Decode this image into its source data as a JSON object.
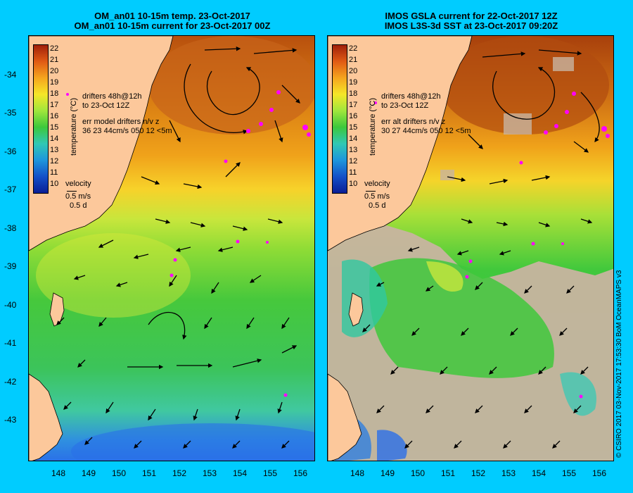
{
  "left_panel": {
    "title_line1": "OM_an01 10-15m temp. 23-Oct-2017",
    "title_line2": "OM_an01 10-15m current for 23-Oct-2017 00Z",
    "drifters_line1": "drifters 48h@12h",
    "drifters_line2": "to 23-Oct 12Z",
    "err_line1": "err model drifters n/v z",
    "err_line2": "36 23 44cm/s 050 12 <5m",
    "velocity_label": "velocity",
    "velocity_scale": "0.5 m/s",
    "velocity_time": "0.5 d"
  },
  "right_panel": {
    "title_line1": "IMOS GSLA current for 22-Oct-2017 12Z",
    "title_line2": "IMOS L3S-3d SST at 23-Oct-2017 09:20Z",
    "drifters_line1": "drifters 48h@12h",
    "drifters_line2": "to 23-Oct 12Z",
    "err_line1": "err alt drifters n/v z",
    "err_line2": "30 27 44cm/s 050 12 <5m",
    "velocity_label": "velocity",
    "velocity_scale": "0.5 m/s",
    "velocity_time": "0.5 d"
  },
  "colorbar": {
    "title": "temperature (°C)",
    "labels": [
      "22",
      "21",
      "20",
      "19",
      "18",
      "17",
      "16",
      "15",
      "14",
      "13",
      "12",
      "11",
      "10"
    ]
  },
  "latitude_labels": [
    "-34",
    "-35",
    "-36",
    "-37",
    "-38",
    "-39",
    "-40",
    "-41",
    "-42",
    "-43"
  ],
  "longitude_labels": [
    "148",
    "149",
    "150",
    "151",
    "152",
    "153",
    "154",
    "155",
    "156"
  ],
  "credit": "© CSIRO 2017   03-Nov-2017 17:53:30 BoM OceanMAPS v3",
  "colors": {
    "background": "#00ccff",
    "land": "#fcc89b",
    "cloud": "#c8b4a0",
    "drifter": "#ff00ff"
  }
}
